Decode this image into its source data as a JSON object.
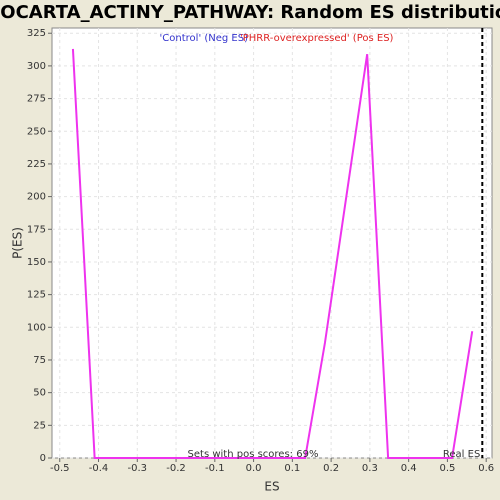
{
  "chart_data": {
    "type": "line",
    "title": "BIOCARTA_ACTINY_PATHWAY: Random ES distribution",
    "x_label": "ES",
    "y_label": "P(ES)",
    "x": [
      -0.466,
      -0.41,
      0.133,
      0.184,
      0.293,
      0.347,
      0.512,
      0.564
    ],
    "series": [
      {
        "name": "P(ES)",
        "color": "#ee33ee",
        "values": [
          313,
          0,
          0,
          88,
          309,
          0,
          0,
          97
        ]
      }
    ],
    "xlim": [
      -0.52,
      0.615
    ],
    "xticks": [
      -0.5,
      -0.4,
      -0.3,
      -0.2,
      -0.1,
      {
        "value": 0,
        "label": "0.0"
      },
      0.1,
      0.2,
      0.3,
      0.4,
      0.5,
      0.6
    ],
    "ylim": [
      0,
      329
    ],
    "yticks": [
      0,
      25,
      50,
      75,
      100,
      125,
      150,
      175,
      200,
      225,
      250,
      275,
      300,
      325
    ],
    "grid": true,
    "neg_label": "'Control' (Neg ES)",
    "neg_color": "#3333cc",
    "pos_label": "'PHRR-overexpressed' (Pos ES)",
    "pos_color": "#dd2222",
    "footer_text": "Sets with pos scores: 69%",
    "real_es": {
      "value": 0.59,
      "label": "Real ES"
    }
  }
}
